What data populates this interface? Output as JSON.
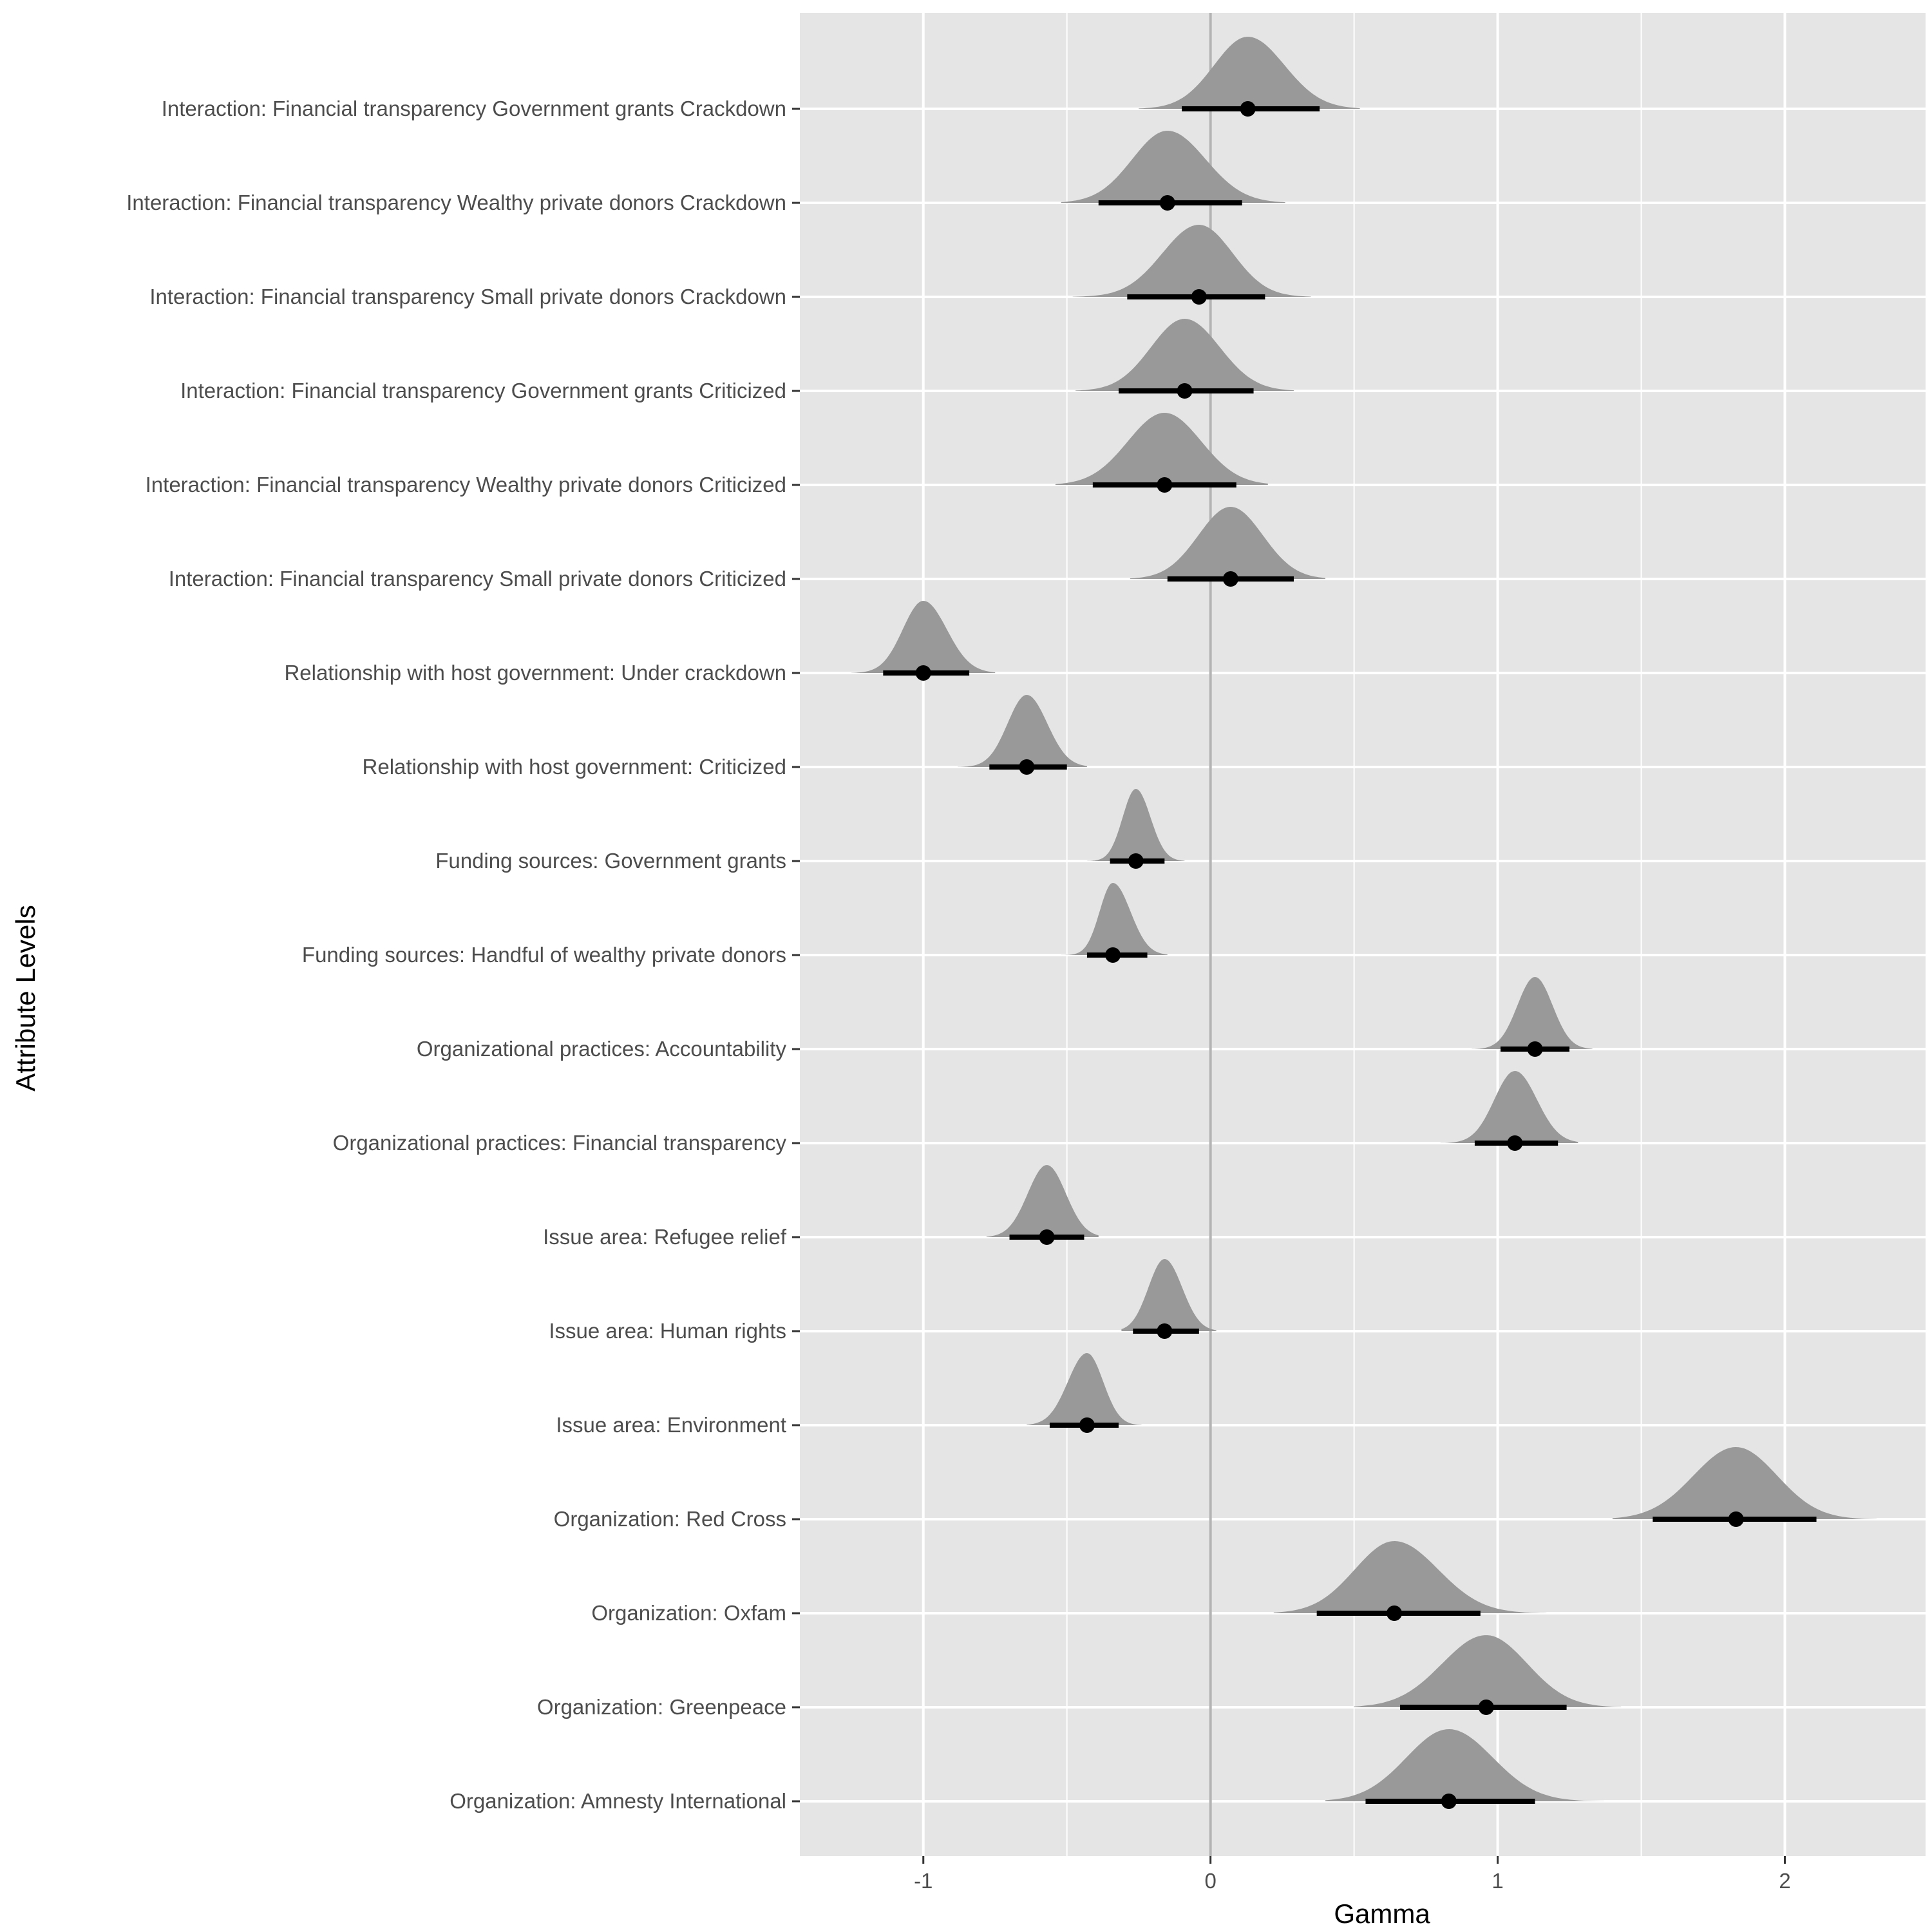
{
  "chart_data": {
    "type": "ridgeline-interval",
    "title": "",
    "xlabel": "Gamma",
    "ylabel": "Attribute Levels",
    "xlim": [
      -1.43,
      2.49
    ],
    "xticks": [
      -1,
      0,
      1,
      2
    ],
    "xtick_labels": [
      "-1",
      "0",
      "1",
      "2"
    ],
    "reference_line_x": 0,
    "grid": true,
    "panel_background": "#e5e5e5",
    "gridline_color": "#ffffff",
    "density_color": "#999999",
    "interval_color": "#000000",
    "reference_line_color": "#b3b3b3",
    "rows": [
      {
        "label": "Interaction: Financial transparency Government grants Crackdown",
        "estimate": 0.13,
        "lower": -0.1,
        "upper": 0.38,
        "density_min": -0.25,
        "density_max": 0.52
      },
      {
        "label": "Interaction: Financial transparency Wealthy private donors Crackdown",
        "estimate": -0.15,
        "lower": -0.39,
        "upper": 0.11,
        "density_min": -0.52,
        "density_max": 0.26
      },
      {
        "label": "Interaction: Financial transparency Small private donors Crackdown",
        "estimate": -0.04,
        "lower": -0.29,
        "upper": 0.19,
        "density_min": -0.48,
        "density_max": 0.35
      },
      {
        "label": "Interaction: Financial transparency Government grants Criticized",
        "estimate": -0.09,
        "lower": -0.32,
        "upper": 0.15,
        "density_min": -0.47,
        "density_max": 0.29
      },
      {
        "label": "Interaction: Financial transparency Wealthy private donors Criticized",
        "estimate": -0.16,
        "lower": -0.41,
        "upper": 0.09,
        "density_min": -0.54,
        "density_max": 0.2
      },
      {
        "label": "Interaction: Financial transparency Small private donors Criticized",
        "estimate": 0.07,
        "lower": -0.15,
        "upper": 0.29,
        "density_min": -0.28,
        "density_max": 0.4
      },
      {
        "label": "Relationship with host government: Under crackdown",
        "estimate": -1.0,
        "lower": -1.14,
        "upper": -0.84,
        "density_min": -1.25,
        "density_max": -0.75
      },
      {
        "label": "Relationship with host government: Criticized",
        "estimate": -0.64,
        "lower": -0.77,
        "upper": -0.5,
        "density_min": -0.88,
        "density_max": -0.43
      },
      {
        "label": "Funding sources: Government grants",
        "estimate": -0.26,
        "lower": -0.35,
        "upper": -0.16,
        "density_min": -0.43,
        "density_max": -0.09
      },
      {
        "label": "Funding sources: Handful of wealthy private donors",
        "estimate": -0.34,
        "lower": -0.43,
        "upper": -0.22,
        "density_min": -0.52,
        "density_max": -0.15
      },
      {
        "label": "Organizational practices: Accountability",
        "estimate": 1.13,
        "lower": 1.01,
        "upper": 1.25,
        "density_min": 0.91,
        "density_max": 1.33
      },
      {
        "label": "Organizational practices: Financial transparency",
        "estimate": 1.06,
        "lower": 0.92,
        "upper": 1.21,
        "density_min": 0.8,
        "density_max": 1.28
      },
      {
        "label": "Issue area: Refugee relief",
        "estimate": -0.57,
        "lower": -0.7,
        "upper": -0.44,
        "density_min": -0.78,
        "density_max": -0.39
      },
      {
        "label": "Issue area: Human rights",
        "estimate": -0.16,
        "lower": -0.27,
        "upper": -0.04,
        "density_min": -0.31,
        "density_max": 0.02
      },
      {
        "label": "Issue area: Environment",
        "estimate": -0.43,
        "lower": -0.56,
        "upper": -0.32,
        "density_min": -0.64,
        "density_max": -0.24
      },
      {
        "label": "Organization: Red Cross",
        "estimate": 1.83,
        "lower": 1.54,
        "upper": 2.11,
        "density_min": 1.4,
        "density_max": 2.32
      },
      {
        "label": "Organization: Oxfam",
        "estimate": 0.64,
        "lower": 0.37,
        "upper": 0.94,
        "density_min": 0.22,
        "density_max": 1.17
      },
      {
        "label": "Organization: Greenpeace",
        "estimate": 0.96,
        "lower": 0.66,
        "upper": 1.24,
        "density_min": 0.5,
        "density_max": 1.43
      },
      {
        "label": "Organization: Amnesty International",
        "estimate": 0.83,
        "lower": 0.54,
        "upper": 1.13,
        "density_min": 0.4,
        "density_max": 1.37
      }
    ]
  }
}
